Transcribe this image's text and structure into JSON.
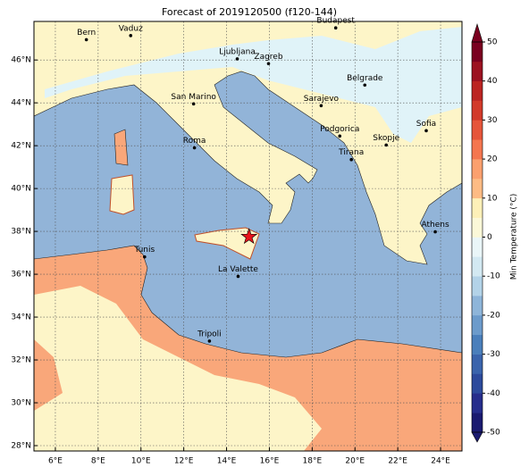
{
  "title": "Forecast of 2019120500 (f120-144)",
  "map": {
    "lon_range": [
      5,
      25
    ],
    "lat_range": [
      27.75,
      47.8
    ],
    "lon_ticks": [
      {
        "value": 6,
        "label": "6°E"
      },
      {
        "value": 8,
        "label": "8°E"
      },
      {
        "value": 10,
        "label": "10°E"
      },
      {
        "value": 12,
        "label": "12°E"
      },
      {
        "value": 14,
        "label": "14°E"
      },
      {
        "value": 16,
        "label": "16°E"
      },
      {
        "value": 18,
        "label": "18°E"
      },
      {
        "value": 20,
        "label": "20°E"
      },
      {
        "value": 22,
        "label": "22°E"
      },
      {
        "value": 24,
        "label": "24°E"
      }
    ],
    "lat_ticks": [
      {
        "value": 28,
        "label": "28°N"
      },
      {
        "value": 30,
        "label": "30°N"
      },
      {
        "value": 32,
        "label": "32°N"
      },
      {
        "value": 34,
        "label": "34°N"
      },
      {
        "value": 36,
        "label": "36°N"
      },
      {
        "value": 38,
        "label": "38°N"
      },
      {
        "value": 40,
        "label": "40°N"
      },
      {
        "value": 42,
        "label": "42°N"
      },
      {
        "value": 44,
        "label": "44°N"
      },
      {
        "value": 46,
        "label": "46°N"
      }
    ],
    "grid": true,
    "forecast_point": {
      "lon": 15.05,
      "lat": 37.75,
      "color": "#e8141c"
    },
    "cities": [
      {
        "label": "Bern",
        "lon": 7.45,
        "lat": 46.95
      },
      {
        "label": "Vaduz",
        "lon": 9.52,
        "lat": 47.14
      },
      {
        "label": "Budapest",
        "lon": 19.1,
        "lat": 47.5
      },
      {
        "label": "Ljubljana",
        "lon": 14.5,
        "lat": 46.05
      },
      {
        "label": "Zagreb",
        "lon": 15.96,
        "lat": 45.83
      },
      {
        "label": "Belgrade",
        "lon": 20.46,
        "lat": 44.83
      },
      {
        "label": "San Marino",
        "lon": 12.46,
        "lat": 43.95
      },
      {
        "label": "Sarajevo",
        "lon": 18.42,
        "lat": 43.87
      },
      {
        "label": "Sofia",
        "lon": 23.33,
        "lat": 42.7
      },
      {
        "label": "Podgorica",
        "lon": 19.29,
        "lat": 42.45
      },
      {
        "label": "Skopje",
        "lon": 21.46,
        "lat": 42.03
      },
      {
        "label": "Roma",
        "lon": 12.5,
        "lat": 41.9
      },
      {
        "label": "Tirana",
        "lon": 19.83,
        "lat": 41.35
      },
      {
        "label": "Athens",
        "lon": 23.75,
        "lat": 37.98
      },
      {
        "label": "Tunis",
        "lon": 10.17,
        "lat": 36.81
      },
      {
        "label": "La Valette",
        "lon": 14.54,
        "lat": 35.9
      },
      {
        "label": "Tripoli",
        "lon": 13.2,
        "lat": 32.88
      }
    ]
  },
  "colorbar": {
    "label": "Min Temperature (°C)",
    "lim": [
      -50,
      50
    ],
    "ticks": [
      -50,
      -40,
      -30,
      -20,
      -10,
      0,
      10,
      20,
      30,
      40,
      50
    ],
    "colors": [
      "#1a1a70",
      "#262d8c",
      "#2c4a9c",
      "#3a64ac",
      "#4a7fbb",
      "#6c9bcb",
      "#8eb5d9",
      "#b3d3e8",
      "#d3e9f2",
      "#eaf6f8",
      "#fbf8d8",
      "#fdf0b8",
      "#fdbb84",
      "#fba06e",
      "#f4764f",
      "#e6553a",
      "#d23a2a",
      "#bb2422",
      "#9c1221",
      "#7a0020"
    ]
  }
}
